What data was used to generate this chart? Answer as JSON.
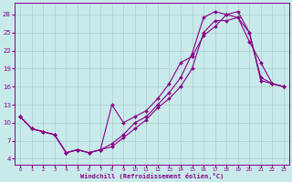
{
  "xlabel": "Windchill (Refroidissement éolien,°C)",
  "background_color": "#c8eaea",
  "grid_color": "#aacccc",
  "line_color": "#880088",
  "ylim": [
    3,
    30
  ],
  "xlim": [
    -0.5,
    23.5
  ],
  "yticks": [
    4,
    7,
    10,
    13,
    16,
    19,
    22,
    25,
    28
  ],
  "xticks": [
    0,
    1,
    2,
    3,
    4,
    5,
    6,
    7,
    8,
    9,
    10,
    11,
    12,
    13,
    14,
    15,
    16,
    17,
    18,
    19,
    20,
    21,
    22,
    23
  ],
  "line1_x": [
    0,
    1,
    2,
    3,
    4,
    5,
    6,
    7,
    8,
    9,
    10,
    11,
    12,
    13,
    14,
    15,
    16,
    17,
    18,
    19,
    20,
    21,
    22,
    23
  ],
  "line1_y": [
    11,
    9,
    8.5,
    8,
    5,
    5.5,
    5,
    5.5,
    13,
    10,
    11,
    12,
    14,
    16.5,
    20,
    21,
    24.5,
    26,
    28,
    28.5,
    25,
    17.5,
    16.5,
    16
  ],
  "line2_x": [
    0,
    1,
    2,
    3,
    4,
    5,
    6,
    7,
    8,
    9,
    10,
    11,
    12,
    13,
    14,
    15,
    16,
    17,
    18,
    19,
    20,
    21,
    22,
    23
  ],
  "line2_y": [
    11,
    9,
    8.5,
    8,
    5,
    5.5,
    5,
    5.5,
    6.5,
    8,
    10,
    11,
    13,
    15,
    17.5,
    21.5,
    27.5,
    28.5,
    28,
    27.5,
    25,
    17,
    16.5,
    16
  ],
  "line3_x": [
    0,
    1,
    2,
    3,
    4,
    5,
    6,
    7,
    8,
    9,
    10,
    11,
    12,
    13,
    14,
    15,
    16,
    17,
    18,
    19,
    20,
    21,
    22,
    23
  ],
  "line3_y": [
    11,
    9,
    8.5,
    8,
    5,
    5.5,
    5,
    5.5,
    6,
    7.5,
    9,
    10.5,
    12.5,
    14,
    16,
    19,
    25,
    27,
    27,
    27.5,
    23.5,
    20,
    16.5,
    16
  ]
}
